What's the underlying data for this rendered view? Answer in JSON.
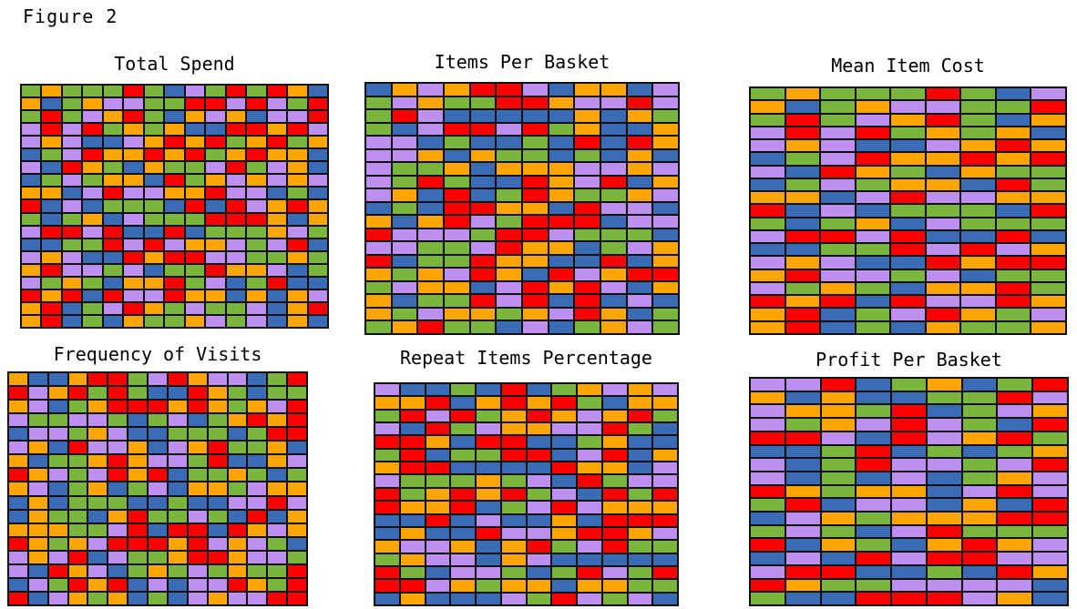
{
  "figure_label": "Figure 2",
  "color_key": {
    "G": "#7ab53c",
    "O": "#ffa502",
    "R": "#fb0000",
    "B": "#3a6bb5",
    "P": "#bd8ff0"
  },
  "border_color": "#101010",
  "background_color": "#ffffff",
  "chart_data": [
    {
      "type": "heatmap",
      "title": "Total Spend",
      "cols": 15,
      "rows": 19,
      "legend": "categorical color cells: G=green O=orange R=red B=blue P=purple",
      "cells": [
        "GOGGGRGBPGRGROB",
        "OBGOPPGGRRPRPGR",
        "GRGPORGBOPOBPPR",
        "PRPRGOGOBBRRORP",
        "POPBBPORORGORGO",
        "BGPROORORGOROOB",
        "PBROGBOGGPRGPOB",
        "BGPGOOBRGOPOPOP",
        "OOBPRPPOORPPBGB",
        "RBPBGGGBRBRPORO",
        "GBGOBPGGGRRROBO",
        "PRRPRBBRBGGGOPG",
        "BBGGRPRPOOPGPRB",
        "POPBBRORRPPGGOG",
        "ORPPGPBGGROOPBG",
        "PGOGBOORGPBGRBB",
        "RORBRPPROOBOBOP",
        "ORBGPROGPGGPBOR",
        "ORBGBOGGOPGPBOB"
      ]
    },
    {
      "type": "heatmap",
      "title": "Items Per Basket",
      "cols": 12,
      "rows": 19,
      "legend": "categorical color cells: G=green O=orange R=red B=blue P=purple",
      "cells": [
        "BOPORRPBOOBP",
        "GPOGGRROPPRP",
        "GRPBBBBBOBOG",
        "GBPRRPRGOBBO",
        "PPBGBBGBRBRO",
        "PPOBOGGBGBOB",
        "PGGOBOOOPPOP",
        "PGRGBBROPRBO",
        "POBRBGROGGOP",
        "BGBRROOBRPPB",
        "OBORPGRRRBPP",
        "RPPPGRRPGGGB",
        "PPGGPROOBGPO",
        "RBGGROOBBRBO",
        "OGOPROBRPORR",
        "GPOOBPRORPBO",
        "OBGGRPRBRBPB",
        "OGPOOGOPROBG",
        "GORGGBPBGOPG"
      ]
    },
    {
      "type": "heatmap",
      "title": "Mean Item Cost",
      "cols": 9,
      "rows": 19,
      "legend": "categorical color cells: G=green O=orange R=red B=blue P=purple",
      "cells": [
        "GOGGGRGBP",
        "OBGOPPGGR",
        "GRGPORGBO",
        "PRPRGOGOB",
        "POPBBPORO",
        "BGPROOROR",
        "PBROGBOGG",
        "BGPGOOBRG",
        "OOBPRPPOO",
        "RBPBGGGBR",
        "GBGOBPGGG",
        "PRRPRBBRB",
        "BBGGRPRPO",
        "POPBBRORR",
        "ORPPGPBGG",
        "PGOGBOORG",
        "RORBRPPRO",
        "ORBGPROGP",
        "ORBGBOGGO"
      ]
    },
    {
      "type": "heatmap",
      "title": "Frequency of Visits",
      "cols": 15,
      "rows": 17,
      "legend": "categorical color cells: G=green O=orange R=red B=blue P=purple",
      "cells": [
        "OBBORRGPROPPBGR",
        "RPORGRGBBROGBGG",
        "OPBGORRROROGOPR",
        "PGGPPGBGPBGOROR",
        "BPPGOPBBGGGBGRR",
        "POBRPPOBPORGGOB",
        "OBGGOROPPGRBBOP",
        "ROPGPRORBGGOGBG",
        "OPBGOBGPBOOGPOO",
        "BOBGGGBBGBBPPRP",
        "BOGGBORGGPGBRBO",
        "OOOGGPRBRRBROPO",
        "ROGOPRRRORPOPGB",
        "POPRBPGGORROPPG",
        "PBROPBGOGPGOGGR",
        "BPGRORBPBPPROGR",
        "RBPOGOBGBPOPPRR"
      ]
    },
    {
      "type": "heatmap",
      "title": "Repeat Items Percentage",
      "cols": 12,
      "rows": 17,
      "legend": "categorical color cells: G=green O=orange R=red B=blue P=purple",
      "cells": [
        "PBBGBRBGOPOP",
        "OORBORORGBOO",
        "GRPRGOROPORG",
        "PBRGPOOPPRGB",
        "RROBRRBBGOBB",
        "GRBGGRRBPRBO",
        "ORRBBBBROOBP",
        "PGGGOGPBRGPP",
        "RGORORGPBRGR",
        "ROORBGPRPOOO",
        "BBRBPBBOBRRR",
        "BOBBRPPORROP",
        "OPPOBORGPRGG",
        "GOPPBOPBBBBB",
        "RGBPPGBGRPGR",
        "RRPOGOOBOOGG",
        "BOBBBPGRPGPB"
      ]
    },
    {
      "type": "heatmap",
      "title": "Profit Per Basket",
      "cols": 9,
      "rows": 17,
      "legend": "categorical color cells: G=green O=orange R=red B=blue P=purple",
      "cells": [
        "PPRBGOBGR",
        "OBOBBGGRP",
        "POOGRBGPO",
        "PGOPRPGBR",
        "RRPBRPORG",
        "BBGRBGBGO",
        "PBGRPPGPR",
        "PBGBPBGOP",
        "ROGOOBPRP",
        "GRBPPBOBR",
        "BPOGOOORR",
        "GPGBPRGGG",
        "RBOGBOROP",
        "BPBRPRRPP",
        "PRRBBGBRO",
        "ROGGPPPPB",
        "GBBRRRPOB"
      ]
    }
  ]
}
